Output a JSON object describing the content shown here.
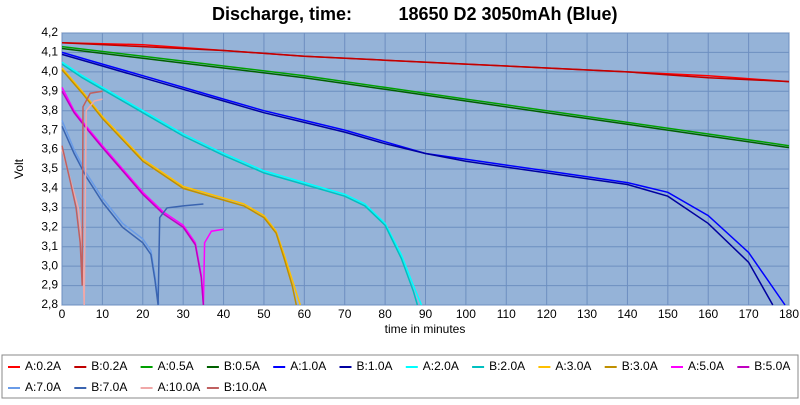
{
  "chart_data": {
    "type": "line",
    "title": "Discharge, time:",
    "subtitle": "18650 D2 3050mAh (Blue)",
    "x_label": "time in minutes",
    "y_label": "Volt",
    "xlim": [
      0,
      180
    ],
    "xticks": [
      0,
      10,
      20,
      30,
      40,
      50,
      60,
      70,
      80,
      90,
      100,
      110,
      120,
      130,
      140,
      150,
      160,
      170,
      180
    ],
    "ylim": [
      2.8,
      4.2
    ],
    "yticks": [
      {
        "value": 2.8,
        "label": "2,8"
      },
      {
        "value": 2.9,
        "label": "2,9"
      },
      {
        "value": 3.0,
        "label": "3,0"
      },
      {
        "value": 3.1,
        "label": "3,1"
      },
      {
        "value": 3.2,
        "label": "3,2"
      },
      {
        "value": 3.3,
        "label": "3,3"
      },
      {
        "value": 3.4,
        "label": "3,4"
      },
      {
        "value": 3.5,
        "label": "3,5"
      },
      {
        "value": 3.6,
        "label": "3,6"
      },
      {
        "value": 3.7,
        "label": "3,7"
      },
      {
        "value": 3.8,
        "label": "3,8"
      },
      {
        "value": 3.9,
        "label": "3,9"
      },
      {
        "value": 4.0,
        "label": "4,0"
      },
      {
        "value": 4.1,
        "label": "4,1"
      },
      {
        "value": 4.2,
        "label": "4,2"
      }
    ],
    "grid": true,
    "legend": "bottom",
    "series": [
      {
        "name": "A:0.2A",
        "color": "#ff0000",
        "x": [
          0,
          20,
          40,
          60,
          80,
          100,
          120,
          140,
          160,
          180
        ],
        "values": [
          4.15,
          4.14,
          4.11,
          4.08,
          4.06,
          4.04,
          4.02,
          4.0,
          3.98,
          3.95
        ]
      },
      {
        "name": "B:0.2A",
        "color": "#c00000",
        "x": [
          0,
          20,
          40,
          60,
          80,
          100,
          120,
          140,
          160,
          180
        ],
        "values": [
          4.15,
          4.13,
          4.11,
          4.08,
          4.06,
          4.04,
          4.02,
          4.0,
          3.97,
          3.95
        ]
      },
      {
        "name": "A:0.5A",
        "color": "#00a000",
        "x": [
          0,
          20,
          40,
          60,
          80,
          100,
          120,
          140,
          160,
          180
        ],
        "values": [
          4.13,
          4.08,
          4.03,
          3.98,
          3.92,
          3.86,
          3.8,
          3.74,
          3.68,
          3.62
        ]
      },
      {
        "name": "B:0.5A",
        "color": "#006000",
        "x": [
          0,
          20,
          40,
          60,
          80,
          100,
          120,
          140,
          160,
          180
        ],
        "values": [
          4.12,
          4.07,
          4.02,
          3.97,
          3.91,
          3.85,
          3.79,
          3.73,
          3.67,
          3.61
        ]
      },
      {
        "name": "A:1.0A",
        "color": "#0000ff",
        "x": [
          0,
          10,
          20,
          30,
          40,
          50,
          60,
          70,
          80,
          90,
          100,
          110,
          120,
          130,
          140,
          150,
          160,
          170,
          179
        ],
        "values": [
          4.1,
          4.04,
          3.98,
          3.92,
          3.86,
          3.8,
          3.75,
          3.7,
          3.64,
          3.58,
          3.55,
          3.52,
          3.49,
          3.46,
          3.43,
          3.38,
          3.26,
          3.07,
          2.8
        ]
      },
      {
        "name": "B:1.0A",
        "color": "#0000a0",
        "x": [
          0,
          10,
          20,
          30,
          40,
          50,
          60,
          70,
          80,
          90,
          100,
          110,
          120,
          130,
          140,
          150,
          160,
          170,
          176
        ],
        "values": [
          4.09,
          4.03,
          3.97,
          3.91,
          3.85,
          3.79,
          3.74,
          3.69,
          3.63,
          3.58,
          3.54,
          3.51,
          3.48,
          3.45,
          3.42,
          3.36,
          3.22,
          3.02,
          2.8
        ]
      },
      {
        "name": "A:2.0A",
        "color": "#00ffff",
        "x": [
          0,
          5,
          10,
          20,
          30,
          40,
          50,
          60,
          70,
          75,
          80,
          84,
          87,
          89
        ],
        "values": [
          4.05,
          3.98,
          3.92,
          3.8,
          3.68,
          3.58,
          3.49,
          3.43,
          3.37,
          3.32,
          3.22,
          3.06,
          2.9,
          2.8
        ]
      },
      {
        "name": "B:2.0A",
        "color": "#00c0c0",
        "x": [
          0,
          5,
          10,
          20,
          30,
          40,
          50,
          60,
          70,
          75,
          80,
          84,
          87,
          88
        ],
        "values": [
          4.04,
          3.97,
          3.91,
          3.79,
          3.67,
          3.57,
          3.48,
          3.42,
          3.36,
          3.31,
          3.21,
          3.04,
          2.87,
          2.8
        ]
      },
      {
        "name": "A:3.0A",
        "color": "#ffc000",
        "x": [
          0,
          5,
          10,
          20,
          30,
          40,
          45,
          50,
          53,
          55,
          57,
          59
        ],
        "values": [
          4.02,
          3.9,
          3.77,
          3.55,
          3.41,
          3.35,
          3.32,
          3.26,
          3.18,
          3.06,
          2.93,
          2.8
        ]
      },
      {
        "name": "B:3.0A",
        "color": "#c09000",
        "x": [
          0,
          5,
          10,
          20,
          30,
          40,
          45,
          50,
          53,
          55,
          57,
          58
        ],
        "values": [
          4.01,
          3.89,
          3.76,
          3.54,
          3.4,
          3.34,
          3.31,
          3.25,
          3.17,
          3.04,
          2.9,
          2.8
        ]
      },
      {
        "name": "A:5.0A",
        "color": "#ff00ff",
        "x": [
          0,
          3,
          6,
          10,
          15,
          20,
          25,
          30,
          33,
          34.5,
          35,
          35.3,
          37,
          40
        ],
        "values": [
          3.92,
          3.8,
          3.72,
          3.62,
          3.5,
          3.38,
          3.28,
          3.21,
          3.12,
          2.95,
          2.8,
          3.12,
          3.18,
          3.19
        ]
      },
      {
        "name": "B:5.0A",
        "color": "#c000c0",
        "x": [
          0,
          3,
          6,
          10,
          15,
          20,
          25,
          30,
          33,
          34.5,
          35
        ],
        "values": [
          3.9,
          3.79,
          3.71,
          3.61,
          3.49,
          3.37,
          3.27,
          3.2,
          3.11,
          2.94,
          2.8
        ]
      },
      {
        "name": "A:7.0A",
        "color": "#6a9ce8",
        "x": [
          0,
          3,
          6,
          10,
          15,
          20,
          22,
          23,
          24
        ],
        "values": [
          3.75,
          3.6,
          3.48,
          3.35,
          3.22,
          3.14,
          3.08,
          2.95,
          2.8
        ]
      },
      {
        "name": "B:7.0A",
        "color": "#3a64b0",
        "x": [
          0,
          3,
          6,
          10,
          15,
          20,
          22,
          23,
          23.8,
          24.2,
          26,
          30,
          35
        ],
        "values": [
          3.72,
          3.58,
          3.46,
          3.33,
          3.2,
          3.12,
          3.06,
          2.93,
          2.8,
          3.25,
          3.3,
          3.31,
          3.32
        ]
      },
      {
        "name": "A:10.0A",
        "color": "#f0a8a8",
        "x": [
          0,
          2,
          4,
          5,
          5.5,
          6,
          8,
          10
        ],
        "values": [
          3.6,
          3.45,
          3.3,
          3.1,
          2.8,
          3.8,
          3.85,
          3.86
        ]
      },
      {
        "name": "B:10.0A",
        "color": "#c06060",
        "x": [
          0,
          2,
          3.5,
          4.5,
          5,
          5.2,
          7,
          10
        ],
        "values": [
          3.62,
          3.44,
          3.3,
          3.12,
          2.9,
          3.82,
          3.89,
          3.9
        ]
      }
    ]
  }
}
